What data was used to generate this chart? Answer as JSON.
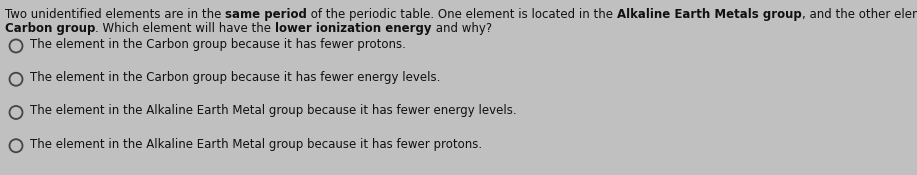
{
  "bg_color": "#c0c0c0",
  "question_line1": "Two unidentified elements are in the same period of the periodic table. One element is located in the Alkaline Earth Metals group, and the other element is in the",
  "question_line1_parts": [
    {
      "text": "Two unidentified elements are in the ",
      "bold": false
    },
    {
      "text": "same period",
      "bold": true
    },
    {
      "text": " of the periodic table. One element is located in the ",
      "bold": false
    },
    {
      "text": "Alkaline Earth Metals group",
      "bold": true
    },
    {
      "text": ", and the other element is in the",
      "bold": false
    }
  ],
  "question_line2_parts": [
    {
      "text": "Carbon group",
      "bold": true
    },
    {
      "text": ". Which element will have the ",
      "bold": false
    },
    {
      "text": "lower ionization energy",
      "bold": true
    },
    {
      "text": " and why?",
      "bold": false
    }
  ],
  "options": [
    "The element in the Carbon group because it has fewer protons.",
    "The element in the Carbon group because it has fewer energy levels.",
    "The element in the Alkaline Earth Metal group because it has fewer energy levels.",
    "The element in the Alkaline Earth Metal group because it has fewer protons."
  ],
  "font_size": 8.5,
  "text_color": "#111111",
  "circle_color": "#444444",
  "fig_width": 9.17,
  "fig_height": 1.75,
  "dpi": 100
}
